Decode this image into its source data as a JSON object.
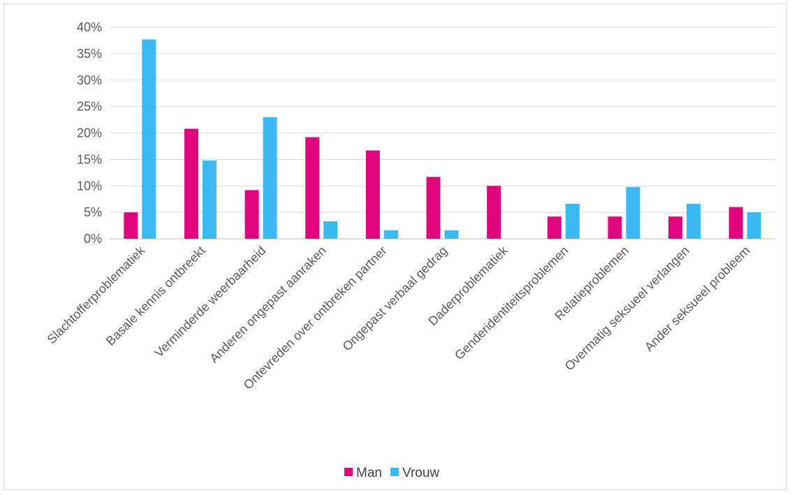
{
  "chart_data": {
    "type": "bar",
    "categories": [
      "Slachtofferproblematiek",
      "Basale kennis ontbreekt",
      "Verminderde weerbaarheid",
      "Anderen ongepast aanraken",
      "Ontevreden over ontbreken partner",
      "Ongepast verbaal gedrag",
      "Daderproblematiek",
      "Genderidentiteitsproblemen",
      "Relatieproblemen",
      "Overmatig seksueel verlangen",
      "Ander seksueel probleem"
    ],
    "series": [
      {
        "name": "Man",
        "color": "#e0047d",
        "values": [
          5.0,
          20.8,
          9.2,
          19.2,
          16.7,
          11.7,
          10.0,
          4.2,
          4.2,
          4.2,
          6.0
        ]
      },
      {
        "name": "Vrouw",
        "color": "#3cb9f0",
        "values": [
          37.7,
          14.8,
          23.0,
          3.3,
          1.6,
          1.6,
          0,
          6.6,
          9.8,
          6.6,
          5.0
        ]
      }
    ],
    "yticks": [
      "0%",
      "5%",
      "10%",
      "15%",
      "20%",
      "25%",
      "30%",
      "35%",
      "40%"
    ],
    "ylim": [
      0,
      40
    ],
    "grid": true,
    "legend_position": "bottom"
  }
}
